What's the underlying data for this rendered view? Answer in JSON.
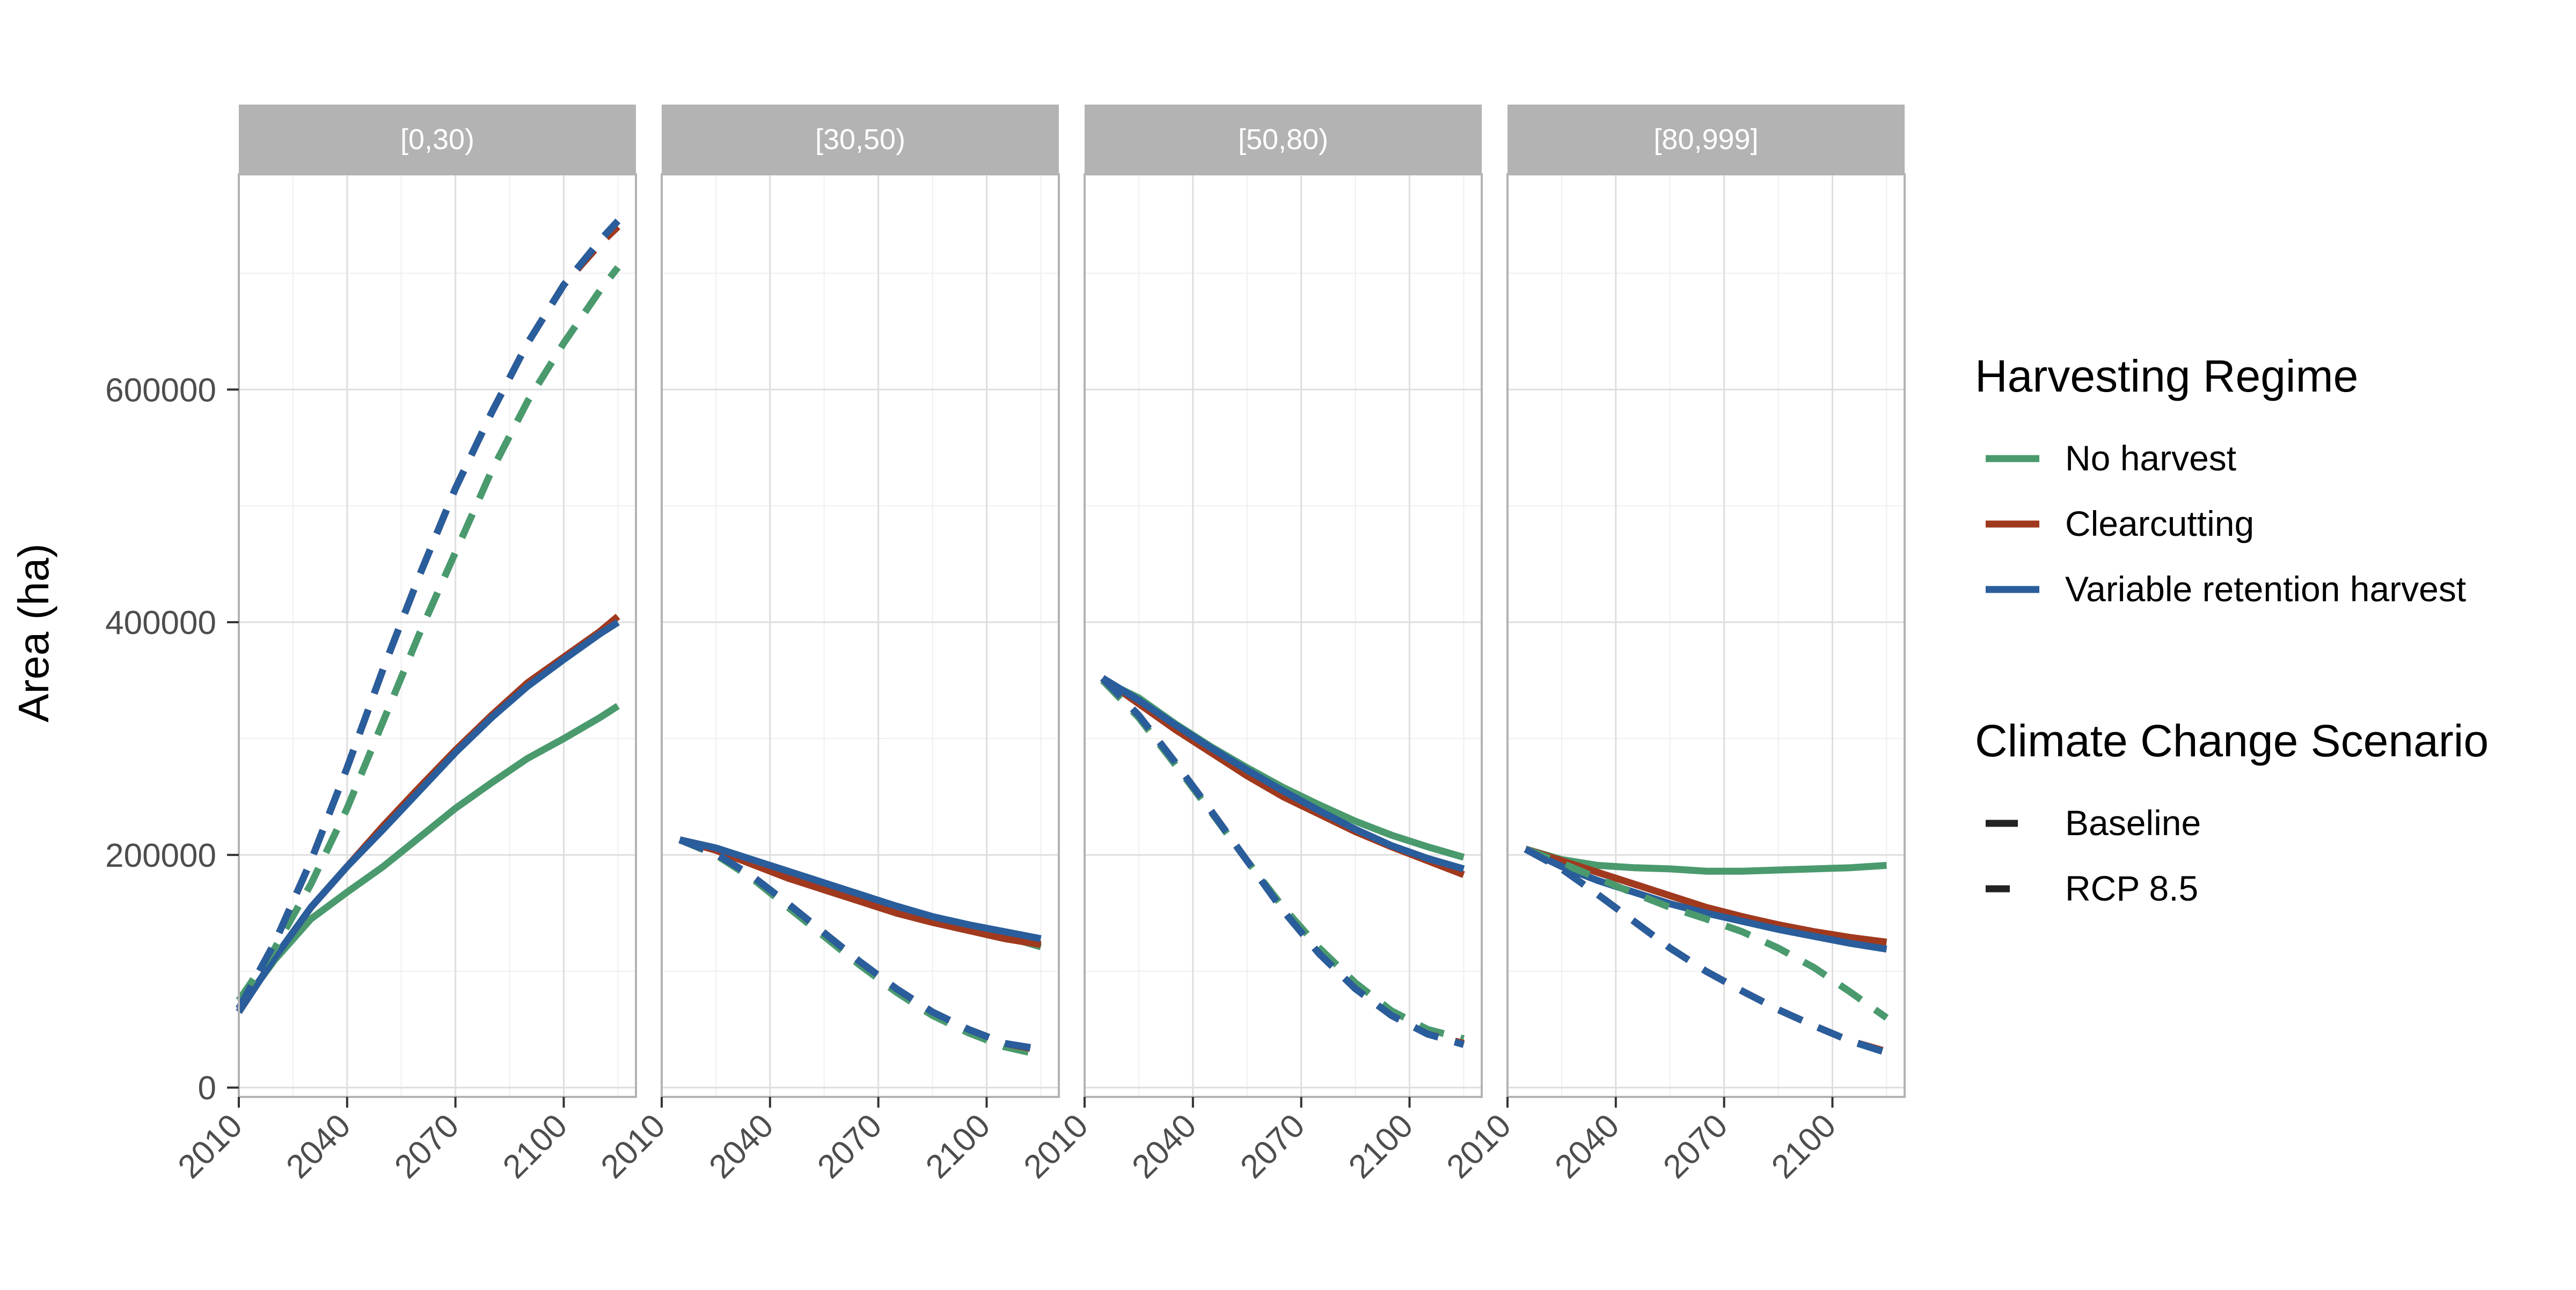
{
  "chart_data": {
    "type": "line",
    "ylabel": "Area (ha)",
    "xlabel": "",
    "x_ticks": [
      2010,
      2040,
      2070,
      2100
    ],
    "y_ticks": [
      0,
      200000,
      400000,
      600000
    ],
    "ylim": [
      -8000,
      785000
    ],
    "xlim": [
      2010,
      2120
    ],
    "grid": true,
    "legend_position": "right",
    "legend": {
      "regime_title": "Harvesting Regime",
      "regimes": [
        {
          "name": "No harvest",
          "color": "#4a9a6e"
        },
        {
          "name": "Clearcutting",
          "color": "#a0391e"
        },
        {
          "name": "Variable retention harvest",
          "color": "#2a5d9b"
        }
      ],
      "scenario_title": "Climate Change Scenario",
      "scenarios": [
        {
          "name": "Baseline",
          "linetype": "solid"
        },
        {
          "name": "RCP 8.5",
          "linetype": "dashed"
        }
      ]
    },
    "facets": [
      {
        "label": "[0,30)",
        "series": [
          {
            "regime": "No harvest",
            "scenario": "Baseline",
            "x": [
              2010,
              2020,
              2030,
              2040,
              2050,
              2060,
              2070,
              2080,
              2090,
              2100,
              2110,
              2115
            ],
            "y": [
              68000,
              110000,
              145000,
              168000,
              190000,
              215000,
              240000,
              262000,
              283000,
              300000,
              318000,
              328000
            ]
          },
          {
            "regime": "Clearcutting",
            "scenario": "Baseline",
            "x": [
              2010,
              2020,
              2030,
              2040,
              2050,
              2060,
              2070,
              2080,
              2090,
              2100,
              2110,
              2115
            ],
            "y": [
              65000,
              112000,
              155000,
              190000,
              225000,
              258000,
              290000,
              320000,
              348000,
              370000,
              392000,
              405000
            ]
          },
          {
            "regime": "Variable retention harvest",
            "scenario": "Baseline",
            "x": [
              2010,
              2020,
              2030,
              2040,
              2050,
              2060,
              2070,
              2080,
              2090,
              2100,
              2110,
              2115
            ],
            "y": [
              65000,
              112000,
              155000,
              190000,
              222000,
              255000,
              288000,
              318000,
              345000,
              368000,
              390000,
              400000
            ]
          },
          {
            "regime": "No harvest",
            "scenario": "RCP 8.5",
            "x": [
              2010,
              2020,
              2030,
              2040,
              2050,
              2060,
              2070,
              2080,
              2090,
              2100,
              2110,
              2115
            ],
            "y": [
              75000,
              120000,
              175000,
              240000,
              315000,
              390000,
              460000,
              530000,
              590000,
              640000,
              685000,
              705000
            ]
          },
          {
            "regime": "Clearcutting",
            "scenario": "RCP 8.5",
            "x": [
              2010,
              2020,
              2030,
              2040,
              2050,
              2060,
              2070,
              2080,
              2090,
              2100,
              2110,
              2115
            ],
            "y": [
              68000,
              125000,
              195000,
              275000,
              360000,
              440000,
              515000,
              580000,
              640000,
              690000,
              725000,
              740000
            ]
          },
          {
            "regime": "Variable retention harvest",
            "scenario": "RCP 8.5",
            "x": [
              2010,
              2020,
              2030,
              2040,
              2050,
              2060,
              2070,
              2080,
              2090,
              2100,
              2110,
              2115
            ],
            "y": [
              68000,
              125000,
              195000,
              275000,
              360000,
              440000,
              515000,
              580000,
              640000,
              690000,
              728000,
              745000
            ]
          }
        ]
      },
      {
        "label": "[30,50)",
        "series": [
          {
            "regime": "No harvest",
            "scenario": "Baseline",
            "x": [
              2015,
              2025,
              2035,
              2045,
              2055,
              2065,
              2075,
              2085,
              2095,
              2105,
              2115
            ],
            "y": [
              213000,
              205000,
              195000,
              185000,
              173000,
              162000,
              153000,
              145000,
              137000,
              130000,
              121000
            ]
          },
          {
            "regime": "Clearcutting",
            "scenario": "Baseline",
            "x": [
              2015,
              2025,
              2035,
              2045,
              2055,
              2065,
              2075,
              2085,
              2095,
              2105,
              2115
            ],
            "y": [
              213000,
              204000,
              192000,
              180000,
              170000,
              160000,
              150000,
              142000,
              135000,
              128000,
              123000
            ]
          },
          {
            "regime": "Variable retention harvest",
            "scenario": "Baseline",
            "x": [
              2015,
              2025,
              2035,
              2045,
              2055,
              2065,
              2075,
              2085,
              2095,
              2105,
              2115
            ],
            "y": [
              213000,
              206000,
              196000,
              186000,
              176000,
              166000,
              156000,
              147000,
              140000,
              134000,
              128000
            ]
          },
          {
            "regime": "No harvest",
            "scenario": "RCP 8.5",
            "x": [
              2015,
              2025,
              2035,
              2045,
              2055,
              2065,
              2075,
              2085,
              2095,
              2105,
              2115
            ],
            "y": [
              213000,
              200000,
              180000,
              155000,
              130000,
              105000,
              82000,
              62000,
              47000,
              35000,
              28000
            ]
          },
          {
            "regime": "Clearcutting",
            "scenario": "RCP 8.5",
            "x": [
              2015,
              2025,
              2035,
              2045,
              2055,
              2065,
              2075,
              2085,
              2095,
              2105,
              2115
            ],
            "y": [
              213000,
              201000,
              182000,
              158000,
              133000,
              108000,
              85000,
              65000,
              50000,
              38000,
              32000
            ]
          },
          {
            "regime": "Variable retention harvest",
            "scenario": "RCP 8.5",
            "x": [
              2015,
              2025,
              2035,
              2045,
              2055,
              2065,
              2075,
              2085,
              2095,
              2105,
              2115
            ],
            "y": [
              213000,
              201000,
              182000,
              158000,
              133000,
              108000,
              85000,
              65000,
              50000,
              38000,
              33000
            ]
          }
        ]
      },
      {
        "label": "[50,80)",
        "series": [
          {
            "regime": "No harvest",
            "scenario": "Baseline",
            "x": [
              2015,
              2025,
              2035,
              2045,
              2055,
              2065,
              2075,
              2085,
              2095,
              2105,
              2115
            ],
            "y": [
              350000,
              335000,
              313000,
              293000,
              275000,
              258000,
              243000,
              229000,
              217000,
              207000,
              198000
            ]
          },
          {
            "regime": "Clearcutting",
            "scenario": "Baseline",
            "x": [
              2015,
              2025,
              2035,
              2045,
              2055,
              2065,
              2075,
              2085,
              2095,
              2105,
              2115
            ],
            "y": [
              352000,
              330000,
              308000,
              288000,
              268000,
              250000,
              235000,
              220000,
              207000,
              195000,
              183000
            ]
          },
          {
            "regime": "Variable retention harvest",
            "scenario": "Baseline",
            "x": [
              2015,
              2025,
              2035,
              2045,
              2055,
              2065,
              2075,
              2085,
              2095,
              2105,
              2115
            ],
            "y": [
              352000,
              333000,
              312000,
              292000,
              273000,
              255000,
              238000,
              222000,
              208000,
              197000,
              188000
            ]
          },
          {
            "regime": "No harvest",
            "scenario": "RCP 8.5",
            "x": [
              2015,
              2025,
              2035,
              2045,
              2055,
              2065,
              2075,
              2085,
              2095,
              2105,
              2115
            ],
            "y": [
              350000,
              318000,
              278000,
              237000,
              195000,
              155000,
              120000,
              90000,
              66000,
              50000,
              42000
            ]
          },
          {
            "regime": "Clearcutting",
            "scenario": "RCP 8.5",
            "x": [
              2015,
              2025,
              2035,
              2045,
              2055,
              2065,
              2075,
              2085,
              2095,
              2105,
              2115
            ],
            "y": [
              352000,
              320000,
              280000,
              238000,
              195000,
              152000,
              115000,
              85000,
              62000,
              46000,
              38000
            ]
          },
          {
            "regime": "Variable retention harvest",
            "scenario": "RCP 8.5",
            "x": [
              2015,
              2025,
              2035,
              2045,
              2055,
              2065,
              2075,
              2085,
              2095,
              2105,
              2115
            ],
            "y": [
              352000,
              320000,
              280000,
              238000,
              195000,
              152000,
              115000,
              85000,
              62000,
              46000,
              37000
            ]
          }
        ]
      },
      {
        "label": "[80,999]",
        "series": [
          {
            "regime": "No harvest",
            "scenario": "Baseline",
            "x": [
              2015,
              2025,
              2035,
              2045,
              2055,
              2065,
              2075,
              2085,
              2095,
              2105,
              2115
            ],
            "y": [
              205000,
              196000,
              191000,
              189000,
              188000,
              186000,
              186000,
              187000,
              188000,
              189000,
              191000
            ]
          },
          {
            "regime": "Clearcutting",
            "scenario": "Baseline",
            "x": [
              2015,
              2025,
              2035,
              2045,
              2055,
              2065,
              2075,
              2085,
              2095,
              2105,
              2115
            ],
            "y": [
              205000,
              195000,
              185000,
              175000,
              165000,
              155000,
              147000,
              140000,
              134000,
              129000,
              125000
            ]
          },
          {
            "regime": "Variable retention harvest",
            "scenario": "Baseline",
            "x": [
              2015,
              2025,
              2035,
              2045,
              2055,
              2065,
              2075,
              2085,
              2095,
              2105,
              2115
            ],
            "y": [
              205000,
              190000,
              178000,
              168000,
              158000,
              150000,
              143000,
              136000,
              130000,
              124000,
              119000
            ]
          },
          {
            "regime": "No harvest",
            "scenario": "RCP 8.5",
            "x": [
              2015,
              2025,
              2035,
              2045,
              2055,
              2065,
              2075,
              2085,
              2095,
              2105,
              2115
            ],
            "y": [
              205000,
              193000,
              180000,
              167000,
              155000,
              145000,
              134000,
              120000,
              103000,
              82000,
              60000
            ]
          },
          {
            "regime": "Clearcutting",
            "scenario": "RCP 8.5",
            "x": [
              2015,
              2025,
              2035,
              2045,
              2055,
              2065,
              2075,
              2085,
              2095,
              2105,
              2115
            ],
            "y": [
              205000,
              188000,
              166000,
              143000,
              120000,
              100000,
              83000,
              67000,
              53000,
              40000,
              31000
            ]
          },
          {
            "regime": "Variable retention harvest",
            "scenario": "RCP 8.5",
            "x": [
              2015,
              2025,
              2035,
              2045,
              2055,
              2065,
              2075,
              2085,
              2095,
              2105,
              2115
            ],
            "y": [
              205000,
              188000,
              166000,
              143000,
              120000,
              100000,
              83000,
              67000,
              53000,
              40000,
              30000
            ]
          }
        ]
      }
    ]
  }
}
